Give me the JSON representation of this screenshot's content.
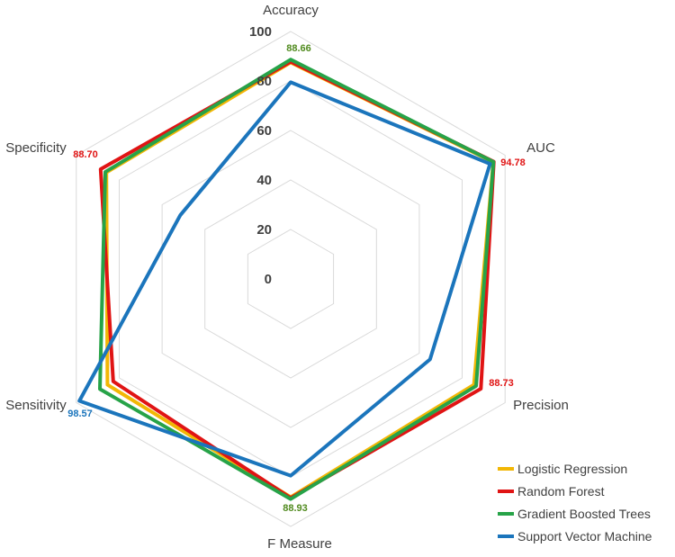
{
  "chart_data": {
    "type": "radar",
    "axes": [
      "Accuracy",
      "AUC",
      "Precision",
      "F Measure",
      "Sensitivity",
      "Specificity"
    ],
    "rlim": [
      0,
      100
    ],
    "ticks": [
      "0",
      "20",
      "40",
      "60",
      "80",
      "100"
    ],
    "tick_values": [
      0,
      20,
      40,
      60,
      80,
      100
    ],
    "series": [
      {
        "name": "Logistic Regression",
        "color": "#f2b705",
        "values": [
          87.5,
          94.5,
          85.5,
          88.2,
          85.5,
          86.0
        ]
      },
      {
        "name": "Random Forest",
        "color": "#e01414",
        "values": [
          87.8,
          94.78,
          88.73,
          88.5,
          82.8,
          88.7
        ]
      },
      {
        "name": "Gradient Boosted Trees",
        "color": "#27a348",
        "values": [
          88.66,
          94.6,
          86.5,
          88.93,
          89.0,
          86.5
        ]
      },
      {
        "name": "Support Vector Machine",
        "color": "#1b75bc",
        "values": [
          79.5,
          93.0,
          65.0,
          79.5,
          98.57,
          51.5
        ]
      }
    ],
    "data_labels": [
      {
        "text": "88.66",
        "axis": "Accuracy",
        "color": "#508a1e"
      },
      {
        "text": "94.78",
        "axis": "AUC",
        "color": "#e01414"
      },
      {
        "text": "88.73",
        "axis": "Precision",
        "color": "#e01414"
      },
      {
        "text": "88.93",
        "axis": "F Measure",
        "color": "#508a1e"
      },
      {
        "text": "98.57",
        "axis": "Sensitivity",
        "color": "#1b75bc"
      },
      {
        "text": "88.70",
        "axis": "Specificity",
        "color": "#e01414"
      }
    ],
    "grid": true,
    "legend": "bottom-right"
  }
}
